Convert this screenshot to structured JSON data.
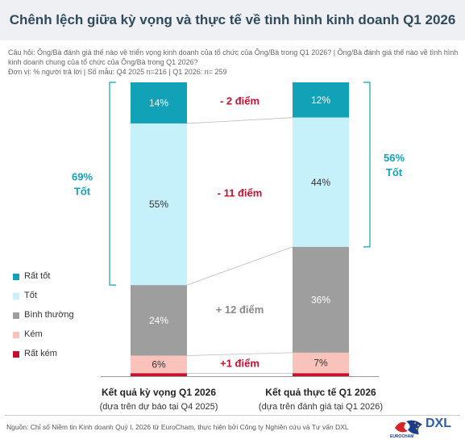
{
  "title": "Chênh lệch giữa kỳ vọng và thực tế về tình hình kinh doanh Q1 2026",
  "question": "Câu hỏi: Ông/Bà đánh giá thế nào về triển vọng kinh doanh của tổ chức của Ông/Bà trong Q1 2026? | Ông/Bà đánh giá thế nào về tình hình kinh doanh chung của tổ chức của Ông/Bà trong Q1 2026?",
  "unit": "Đơn vị: % người trả lời | Số mẫu: Q4 2025 n=216 | Q1 2026: n= 259",
  "source": "Nguồn: Chỉ số Niềm tin Kinh doanh Quý I, 2026 từ EuroCham, thực hiện bởi Công ty Nghiên cứu và Tư vấn DXL",
  "logos": {
    "eurocham": "EUROCHAM",
    "dxl": "DXL"
  },
  "chart_data": {
    "type": "bar",
    "stacked": true,
    "normalized_to": 100,
    "categories": [
      {
        "label": "Kết quả kỳ vọng Q1 2026",
        "sublabel": "(dựa trên dự báo tại Q4 2025)"
      },
      {
        "label": "Kết quả thực tế Q1 2026",
        "sublabel": "(dựa trên đánh giá tại Q1 2026)"
      }
    ],
    "series": [
      {
        "name": "Rất tốt",
        "color": "#12a2b8",
        "text_color": "#ffffff",
        "values": [
          14,
          12
        ],
        "labels": [
          "14%",
          "12%"
        ]
      },
      {
        "name": "Tốt",
        "color": "#c6f1fb",
        "text_color": "#333333",
        "values": [
          55,
          44
        ],
        "labels": [
          "55%",
          "44%"
        ]
      },
      {
        "name": "Bình thường",
        "color": "#9e9e9e",
        "text_color": "#ffffff",
        "values": [
          24,
          36
        ],
        "labels": [
          "24%",
          "36%"
        ]
      },
      {
        "name": "Kém",
        "color": "#f9c3bc",
        "text_color": "#333333",
        "values": [
          6,
          7
        ],
        "labels": [
          "6%",
          "7%"
        ]
      },
      {
        "name": "Rất kém",
        "color": "#c8102e",
        "text_color": "#ffffff",
        "values": [
          1,
          1
        ],
        "labels": [
          "",
          ""
        ]
      }
    ],
    "differences": [
      {
        "label": "- 2 điểm",
        "color": "#c8102e"
      },
      {
        "label": "- 11 điểm",
        "color": "#c8102e"
      },
      {
        "label": "+ 12 điểm",
        "color": "#888888"
      },
      {
        "label": "+1 điểm",
        "color": "#c8102e"
      }
    ],
    "brackets": [
      {
        "value": "69%",
        "label": "Tốt",
        "side": "left",
        "color": "#12a2b8"
      },
      {
        "value": "56%",
        "label": "Tốt",
        "side": "right",
        "color": "#12a2b8"
      }
    ],
    "legend_position": "left"
  }
}
